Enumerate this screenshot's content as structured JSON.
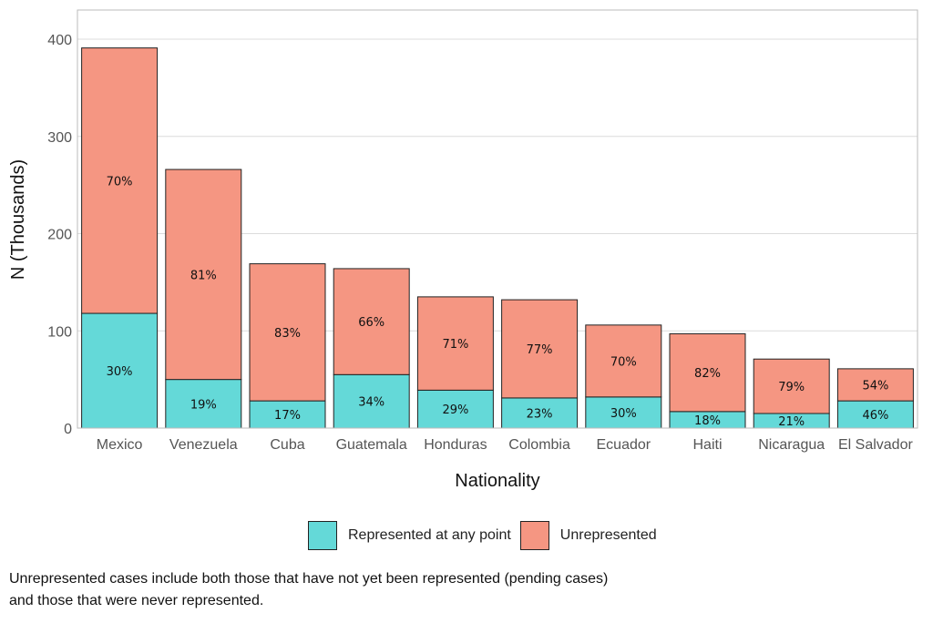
{
  "chart_data": {
    "type": "bar",
    "stacked": true,
    "categories": [
      "Mexico",
      "Venezuela",
      "Cuba",
      "Guatemala",
      "Honduras",
      "Colombia",
      "Ecuador",
      "Haiti",
      "Nicaragua",
      "El Salvador"
    ],
    "series": [
      {
        "name": "Represented at any point",
        "color": "#64D9D8",
        "values": [
          118,
          50,
          28,
          55,
          39,
          31,
          32,
          17,
          15,
          28
        ],
        "labels": [
          "30%",
          "19%",
          "17%",
          "34%",
          "29%",
          "23%",
          "30%",
          "18%",
          "21%",
          "46%"
        ]
      },
      {
        "name": "Unrepresented",
        "color": "#F59682",
        "values": [
          273,
          216,
          141,
          109,
          96,
          101,
          74,
          80,
          56,
          33
        ],
        "labels": [
          "70%",
          "81%",
          "83%",
          "66%",
          "71%",
          "77%",
          "70%",
          "82%",
          "79%",
          "54%"
        ]
      }
    ],
    "xlabel": "Nationality",
    "ylabel": "N (Thousands)",
    "ylim": [
      0,
      430
    ],
    "yticks": [
      0,
      100,
      200,
      300,
      400
    ],
    "grid": true,
    "legend": "bottom"
  },
  "legend": {
    "items": [
      {
        "label": "Represented at any point",
        "color": "#64D9D8"
      },
      {
        "label": "Unrepresented",
        "color": "#F59682"
      }
    ]
  },
  "note": {
    "line1": "Unrepresented cases include both those that have not yet been represented (pending cases)",
    "line2": "and those that were never represented."
  }
}
